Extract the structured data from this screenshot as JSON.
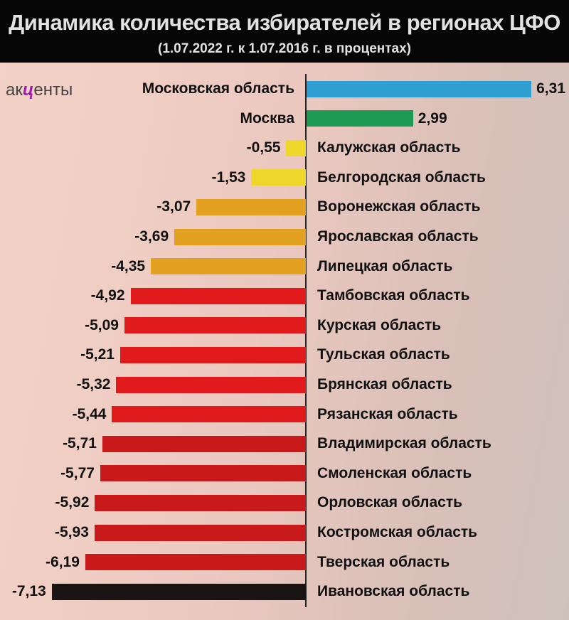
{
  "logo": {
    "pre": "ак",
    "mid": "ц",
    "post": "енты"
  },
  "chart_data": {
    "type": "bar",
    "orientation": "horizontal",
    "title": "Динамика количества избирателей в регионах ЦФО",
    "subtitle": "(1.07.2022 г. к 1.07.2016 г. в процентах)",
    "categories": [
      "Московская область",
      "Москва",
      "Калужская область",
      "Белгородская область",
      "Воронежская область",
      "Ярославская область",
      "Липецкая область",
      "Тамбовская область",
      "Курская область",
      "Тульская область",
      "Брянская область",
      "Рязанская область",
      "Владимирская область",
      "Смоленская область",
      "Орловская область",
      "Костромская область",
      "Тверская область",
      "Ивановская область"
    ],
    "values": [
      6.31,
      2.99,
      -0.55,
      -1.53,
      -3.07,
      -3.69,
      -4.35,
      -4.92,
      -5.09,
      -5.21,
      -5.32,
      -5.44,
      -5.71,
      -5.77,
      -5.92,
      -5.93,
      -6.19,
      -7.13
    ],
    "value_labels": [
      "6,31",
      "2,99",
      "-0,55",
      "-1,53",
      "-3,07",
      "-3,69",
      "-4,35",
      "-4,92",
      "-5,09",
      "-5,21",
      "-5,32",
      "-5,44",
      "-5,71",
      "-5,77",
      "-5,92",
      "-5,93",
      "-6,19",
      "-7,13"
    ],
    "colors": [
      "#2f9fd2",
      "#1f9a55",
      "#eed62a",
      "#eed62a",
      "#e3a122",
      "#e3a122",
      "#e3a122",
      "#e11b1b",
      "#e11b1b",
      "#e11b1b",
      "#e11b1b",
      "#e11b1b",
      "#c81a1a",
      "#c81a1a",
      "#c81a1a",
      "#c81a1a",
      "#c81a1a",
      "#1a1414"
    ],
    "xlim": [
      -7.13,
      6.31
    ]
  }
}
